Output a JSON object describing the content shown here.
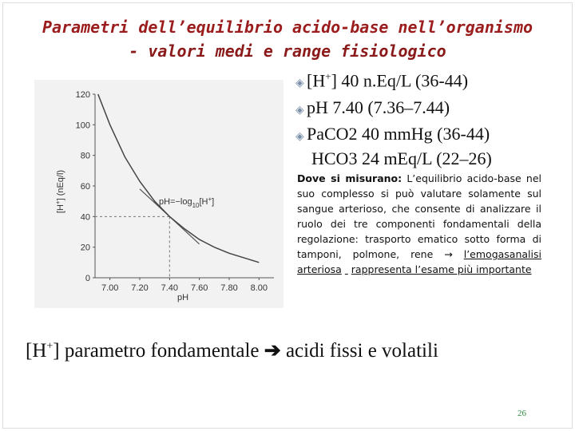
{
  "title": [
    "Parametri dell’equilibrio acido-base nell’organismo",
    "- valori medi e range fisiologico"
  ],
  "bullets": [
    {
      "pre": "[H",
      "sup": "+",
      "post": "] 40 n.Eq/L (36-44)"
    },
    "pH 7.40 (7.36–7.44)",
    "PaCO2 40 mmHg (36-44)"
  ],
  "bullet_continuation": "HCO3 24 mEq/L (22–26)",
  "note": {
    "label": "Dove si misurano:",
    "text": "L’equilibrio acido-base nel suo complesso si può valutare solamente sul sangue arterioso, che consente di analizzare il ruolo dei tre componenti fondamentali della regolazione: trasporto ematico sotto forma di tamponi, polmone, rene",
    "underlined_1": "l’emogasanalisi arteriosa",
    "underlined_2": "rappresenta l’esame più importante"
  },
  "footer": {
    "pre": "[H",
    "sup": "+",
    "post": "] parametro fondamentale",
    "tail": "acidi fissi e volatili"
  },
  "page_number": "26",
  "chart_data": {
    "type": "line",
    "x_label": "pH",
    "y_label": {
      "pre": "[H",
      "sup": "+",
      "post": "] (nEq/l)"
    },
    "annotation": {
      "main": "pH=−log",
      "sub": "10",
      "pre": "[H",
      "sup": "+",
      "post": "]"
    },
    "x": [
      6.92,
      7.0,
      7.1,
      7.2,
      7.3,
      7.4,
      7.5,
      7.6,
      7.7,
      7.8,
      7.9,
      8.0
    ],
    "series": [
      {
        "name": "H+",
        "color": "#444444",
        "values": [
          120,
          100,
          79,
          63,
          50,
          40,
          32,
          25,
          20,
          16,
          13,
          10
        ]
      }
    ],
    "tangent": {
      "x": [
        7.2,
        7.6
      ],
      "values": [
        58,
        22
      ]
    },
    "reference": {
      "x": 7.4,
      "y": 40
    },
    "xlim": [
      6.9,
      8.1
    ],
    "ylim": [
      0,
      120
    ],
    "xticks": [
      {
        "value": 7.0,
        "label": "7.00"
      },
      {
        "value": 7.2,
        "label": "7.20"
      },
      {
        "value": 7.4,
        "label": "7.40"
      },
      {
        "value": 7.6,
        "label": "7.60"
      },
      {
        "value": 7.8,
        "label": "7.80"
      },
      {
        "value": 8.0,
        "label": "8.00"
      }
    ],
    "yticks": [
      0,
      20,
      40,
      60,
      80,
      100,
      120
    ]
  }
}
